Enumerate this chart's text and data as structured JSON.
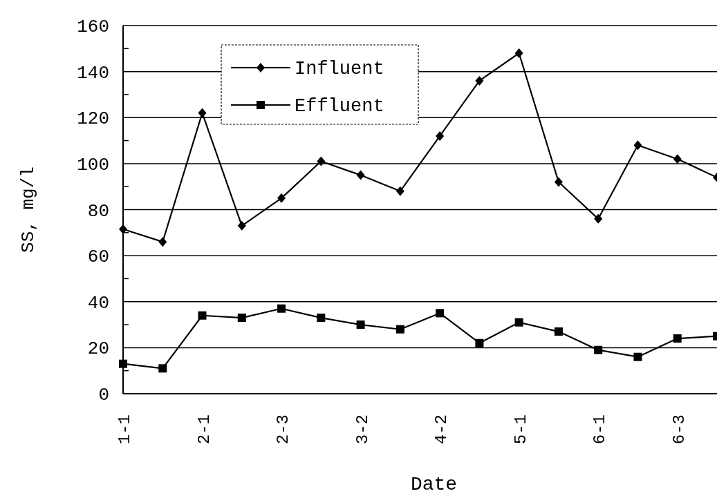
{
  "chart_data": {
    "type": "line",
    "xlabel": "Date",
    "ylabel": "SS, mg/l",
    "categories": [
      "1-1",
      null,
      "2-1",
      null,
      "2-3",
      null,
      "3-2",
      null,
      "4-2",
      null,
      "5-1",
      null,
      "6-1",
      null,
      "6-3",
      null
    ],
    "series": [
      {
        "name": "Influent",
        "color": "#000000",
        "marker": "diamond",
        "values": [
          71.5,
          66,
          122,
          73,
          85,
          101,
          95,
          88,
          112,
          136,
          148,
          92,
          76,
          108,
          102,
          94
        ]
      },
      {
        "name": "Effluent",
        "color": "#000000",
        "marker": "square",
        "values": [
          13,
          11,
          34,
          33,
          37,
          33,
          30,
          28,
          35,
          22,
          31,
          27,
          19,
          16,
          24,
          25
        ]
      }
    ],
    "ylim": [
      0,
      160
    ],
    "yticks": [
      0,
      20,
      40,
      60,
      80,
      100,
      120,
      140,
      160
    ],
    "grid": "y",
    "legend": "top left",
    "line_style": "solid"
  }
}
